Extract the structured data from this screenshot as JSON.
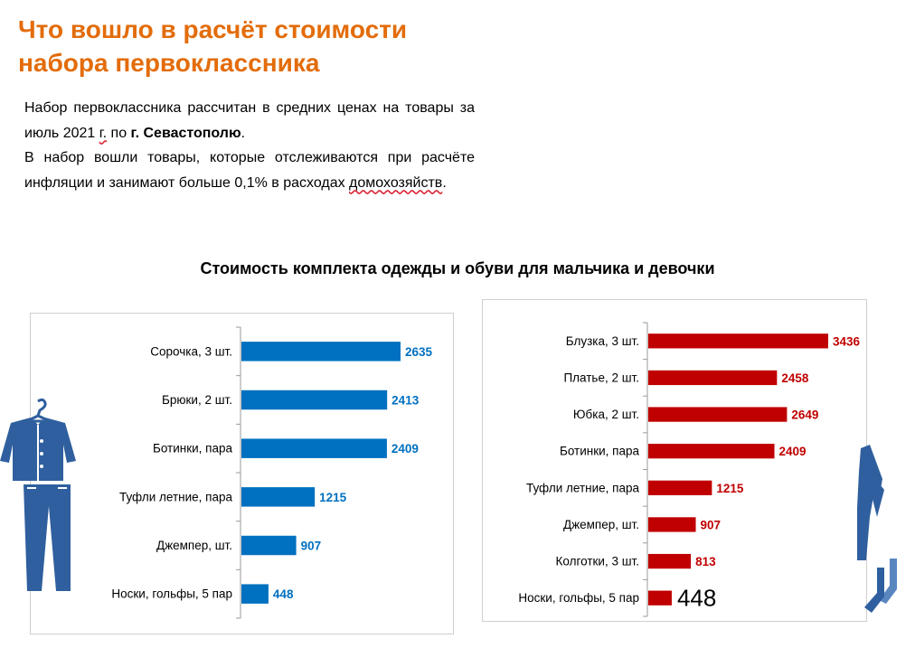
{
  "title_line1": "Что вошло в расчёт стоимости",
  "title_line2": "набора первоклассника",
  "intro": {
    "p1_a": "Набор первоклассника рассчитан в средних ценах на товары за июль 2021 ",
    "p1_g": "г.",
    "p1_b": " по ",
    "p1_bold": "г. Севастополю",
    "p1_end": ".",
    "p2_a": "В набор вошли товары, которые отслеживаются при расчёте инфляции и занимают больше 0,1% в расходах ",
    "p2_spell": "домохозяйств",
    "p2_end": "."
  },
  "subtitle": "Стоимость комплекта одежды и обуви для мальчика и девочки",
  "colors": {
    "title": "#E36C0A",
    "boy": "#0070C0",
    "girl": "#C00000",
    "illustration": "#2F5F9E"
  },
  "icons": [
    "hanger-icon",
    "jacket-icon",
    "trousers-icon",
    "dress-icon",
    "socks-icon"
  ],
  "chart_data": [
    {
      "type": "bar",
      "orientation": "horizontal",
      "categories": [
        "Сорочка, 3 шт.",
        "Брюки, 2 шт.",
        "Ботинки, пара",
        "Туфли летние, пара",
        "Джемпер, шт.",
        "Носки,  гольфы, 5 пар"
      ],
      "values": [
        2635,
        2413,
        2409,
        1215,
        907,
        448
      ],
      "data_labels": [
        "2635",
        "2413",
        "2409",
        "1215",
        "907",
        "448"
      ],
      "color": "#0070C0",
      "label_color": "#0070C0"
    },
    {
      "type": "bar",
      "orientation": "horizontal",
      "categories": [
        "Блузка, 3 шт.",
        "Платье, 2 шт.",
        "Юбка, 2 шт.",
        "Ботинки, пара",
        "Туфли летние, пара",
        "Джемпер, шт.",
        "Колготки, 3 шт.",
        "Носки, гольфы, 5 пар"
      ],
      "values": [
        3436,
        2458,
        2649,
        2409,
        1215,
        907,
        813,
        448
      ],
      "data_labels": [
        "3436",
        "2458",
        "2649",
        "2409",
        "1215",
        "907",
        "813",
        "448"
      ],
      "color": "#C00000",
      "label_color": "#C00000",
      "large_label_last": true
    }
  ]
}
